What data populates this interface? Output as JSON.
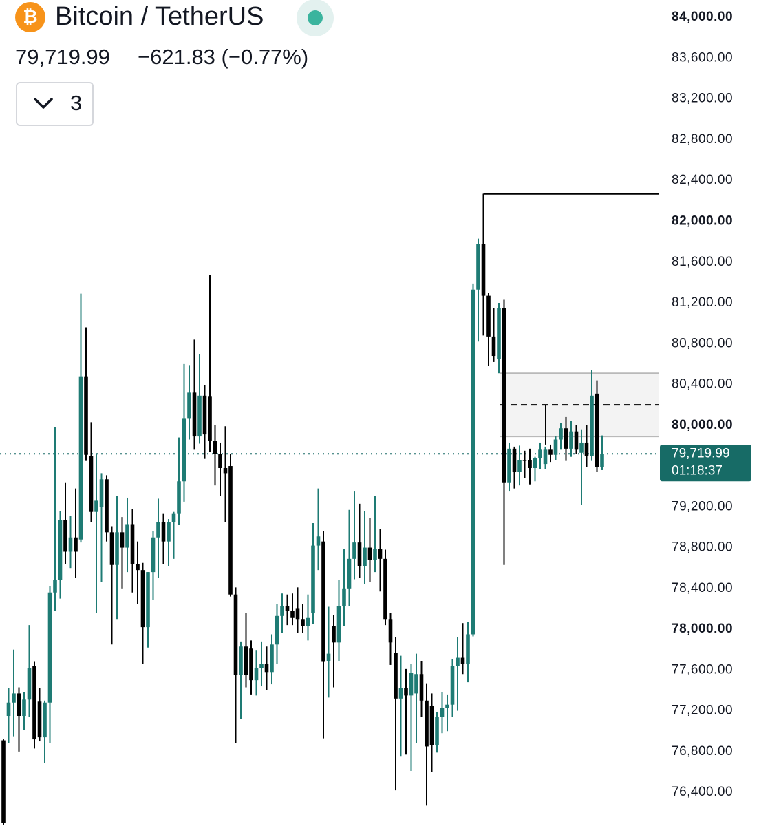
{
  "chart_data": {
    "type": "candlestick",
    "title": "Bitcoin / TetherUS",
    "last_price": {
      "value": 79719.99,
      "label": "79,719.99"
    },
    "change": "−621.83 (−0.77%)",
    "indicators": "3",
    "countdown": "01:18:37",
    "up_color": "#1e7b74",
    "down_color": "#000000",
    "ylim": [
      76070,
      84170
    ],
    "yticks": [
      {
        "value": 84000,
        "label": "84,000.00"
      },
      {
        "value": 83600,
        "label": "83,600.00"
      },
      {
        "value": 83200,
        "label": "83,200.00"
      },
      {
        "value": 82800,
        "label": "82,800.00"
      },
      {
        "value": 82400,
        "label": "82,400.00"
      },
      {
        "value": 82000,
        "label": "82,000.00"
      },
      {
        "value": 81600,
        "label": "81,600.00"
      },
      {
        "value": 81200,
        "label": "81,200.00"
      },
      {
        "value": 80800,
        "label": "80,800.00"
      },
      {
        "value": 80400,
        "label": "80,400.00"
      },
      {
        "value": 80000,
        "label": "80,000.00"
      },
      {
        "value": 79600,
        "label": "79,600.00"
      },
      {
        "value": 79200,
        "label": "79,200.00"
      },
      {
        "value": 78800,
        "label": "78,800.00"
      },
      {
        "value": 78400,
        "label": "78,400.00"
      },
      {
        "value": 78000,
        "label": "78,000.00"
      },
      {
        "value": 77600,
        "label": "77,600.00"
      },
      {
        "value": 77200,
        "label": "77,200.00"
      },
      {
        "value": 76800,
        "label": "76,800.00"
      },
      {
        "value": 76400,
        "label": "76,400.00"
      }
    ],
    "level_line": 82270,
    "zone": [
      79890,
      80510
    ],
    "zone_mid": 80200,
    "open": [
      76910,
      77150,
      77280,
      77370,
      77150,
      77310,
      77640,
      77290,
      76940,
      77280,
      78360,
      78480,
      79070,
      78760,
      78900,
      78880,
      80480,
      79700,
      79150,
      79200,
      79470,
      78950,
      78630,
      78950,
      78800,
      79030,
      78640,
      78580,
      78020,
      78560,
      78900,
      79050,
      78860,
      79050,
      79130,
      79450,
      80070,
      80320,
      79890,
      80290,
      80280,
      79850,
      79720,
      79580,
      79600,
      78340,
      77550,
      77830,
      77810,
      77500,
      77620,
      77660,
      77580,
      77850,
      78130,
      78230,
      78180,
      78200,
      78100,
      78030,
      78160,
      78820,
      78860,
      77690,
      78030,
      77870,
      78230,
      78400,
      78690,
      78850,
      78620,
      78800,
      78680,
      78790,
      78690,
      78100,
      77770,
      77320,
      77420,
      77350,
      77370,
      77560,
      77300,
      77250,
      76860,
      77140,
      77230,
      77260,
      77640,
      77720,
      77660,
      77950,
      81330,
      81780,
      81270,
      80870,
      80650,
      81150,
      79440,
      79770,
      79540,
      79660,
      79660,
      79580,
      79680,
      79620,
      79760,
      79710,
      79860,
      79970,
      79770,
      79940,
      79730,
      79830,
      79700,
      80310,
      79590
    ],
    "high": [
      76920,
      77420,
      77800,
      77430,
      77380,
      78040,
      77680,
      77420,
      77300,
      78420,
      79980,
      79160,
      79440,
      79110,
      79380,
      81290,
      80960,
      80030,
      79720,
      79530,
      79510,
      79010,
      79310,
      79100,
      79290,
      79180,
      78860,
      78650,
      78560,
      78960,
      79280,
      79130,
      79080,
      79150,
      79880,
      80600,
      80590,
      80840,
      80700,
      80390,
      81470,
      80000,
      79830,
      79990,
      79720,
      78410,
      77880,
      78160,
      77890,
      77790,
      77880,
      77830,
      77950,
      78250,
      78350,
      78340,
      78350,
      78410,
      78250,
      78340,
      79040,
      79380,
      78960,
      78220,
      78140,
      78480,
      78790,
      79170,
      79350,
      79230,
      79160,
      79090,
      79310,
      78980,
      78780,
      78160,
      77920,
      77740,
      77610,
      77660,
      77760,
      77690,
      77470,
      77370,
      77190,
      77380,
      77360,
      77710,
      77920,
      78060,
      78070,
      81390,
      81830,
      82270,
      81300,
      81150,
      81200,
      81230,
      79830,
      79790,
      79800,
      79750,
      79770,
      79690,
      79830,
      79790,
      79810,
      79890,
      80020,
      80080,
      80040,
      80000,
      79960,
      80000,
      80540,
      80440,
      79900
    ],
    "low": [
      76080,
      76880,
      76950,
      76800,
      77010,
      77140,
      76830,
      76900,
      76690,
      76880,
      78180,
      78300,
      78640,
      78600,
      78500,
      78850,
      79650,
      79050,
      78160,
      78460,
      78860,
      77850,
      78100,
      78400,
      78560,
      78360,
      78250,
      77660,
      77820,
      78290,
      78500,
      78640,
      78620,
      78690,
      79020,
      79250,
      79860,
      79760,
      79820,
      79670,
      79740,
      79410,
      79310,
      79050,
      78320,
      76880,
      77120,
      77430,
      77360,
      77350,
      77440,
      77400,
      77460,
      77660,
      77960,
      78040,
      78040,
      77960,
      77960,
      77890,
      78050,
      78580,
      76930,
      77330,
      77430,
      77690,
      78030,
      78230,
      78490,
      78500,
      78440,
      78460,
      78560,
      78370,
      78040,
      77650,
      76420,
      76750,
      76770,
      76610,
      76880,
      77140,
      76270,
      76600,
      76790,
      76980,
      77000,
      77140,
      77200,
      77560,
      77480,
      77930,
      80820,
      80880,
      80580,
      80620,
      80510,
      78630,
      79350,
      79380,
      79410,
      79480,
      79420,
      79450,
      79570,
      79570,
      79640,
      79660,
      79760,
      79650,
      79690,
      79720,
      79220,
      79590,
      79650,
      79540,
      79560
    ],
    "close": [
      76100,
      77280,
      77370,
      77150,
      77310,
      77620,
      76920,
      76940,
      77280,
      78360,
      78480,
      79070,
      78760,
      78900,
      78760,
      80480,
      79710,
      79150,
      79260,
      79470,
      78950,
      78630,
      78950,
      78800,
      79030,
      78640,
      78580,
      78020,
      78560,
      78900,
      79050,
      78860,
      79050,
      79130,
      79450,
      80070,
      80320,
      79890,
      80290,
      79910,
      79850,
      79720,
      79580,
      79530,
      78340,
      77550,
      77830,
      77550,
      77500,
      77620,
      77660,
      77580,
      77850,
      78130,
      78230,
      78180,
      78110,
      78100,
      78030,
      78110,
      78820,
      78910,
      77680,
      77760,
      77870,
      78230,
      78400,
      78690,
      78850,
      78620,
      78800,
      78680,
      78790,
      78690,
      78100,
      77870,
      77320,
      77420,
      77350,
      77570,
      77560,
      77300,
      76850,
      76860,
      77140,
      77230,
      77260,
      77640,
      77720,
      77660,
      77950,
      81330,
      81780,
      81270,
      80870,
      80680,
      81150,
      79440,
      79770,
      79540,
      79660,
      79650,
      79580,
      79680,
      79760,
      79760,
      79710,
      79860,
      79970,
      79770,
      79940,
      79760,
      79830,
      79700,
      80290,
      79590,
      79719.99
    ]
  }
}
